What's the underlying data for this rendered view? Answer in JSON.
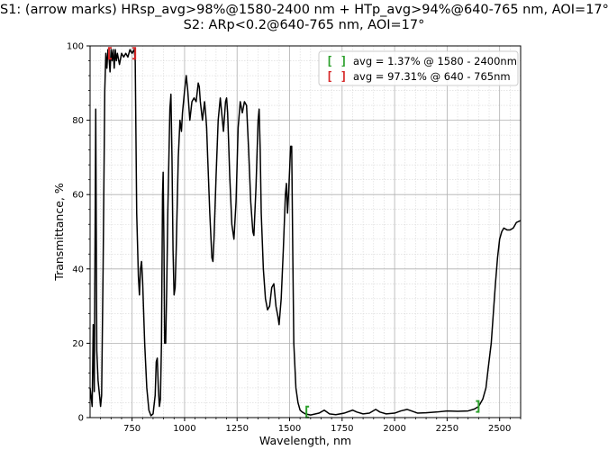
{
  "chart_data": {
    "type": "line",
    "title_line1": "S1: (arrow marks) HRsp_avg>98%@1580-2400 nm + HTp_avg>94%@640-765 nm, AOI=17°",
    "title_line2": "S2: ARp<0.2@640-765 nm, AOI=17°",
    "xlabel": "Wavelength, nm",
    "ylabel": "Transmittance, %",
    "xlim": [
      550,
      2600
    ],
    "ylim": [
      0,
      100
    ],
    "xticks": [
      750,
      1000,
      1250,
      1500,
      1750,
      2000,
      2250,
      2500
    ],
    "yticks": [
      0,
      20,
      40,
      60,
      80,
      100
    ],
    "grid": true,
    "legend_position": "top-right",
    "legend": [
      {
        "marker": "[ ]",
        "color": "#2ca02c",
        "label": "avg = 1.37% @ 1580 - 2400nm"
      },
      {
        "marker": "[ ]",
        "color": "#d62728",
        "label": "avg = 97.31% @ 640 - 765nm"
      }
    ],
    "bracket_marks": [
      {
        "x": 640,
        "y": 98,
        "color": "#d62728",
        "side": "left"
      },
      {
        "x": 765,
        "y": 98,
        "color": "#d62728",
        "side": "right"
      },
      {
        "x": 1580,
        "y": 1.5,
        "color": "#2ca02c",
        "side": "left"
      },
      {
        "x": 2400,
        "y": 3,
        "color": "#2ca02c",
        "side": "right"
      }
    ],
    "series": [
      {
        "color": "#000000",
        "points": [
          [
            550,
            8
          ],
          [
            560,
            3
          ],
          [
            565,
            25
          ],
          [
            570,
            7
          ],
          [
            577,
            83
          ],
          [
            582,
            18
          ],
          [
            588,
            10
          ],
          [
            595,
            6
          ],
          [
            600,
            3
          ],
          [
            605,
            6
          ],
          [
            612,
            40
          ],
          [
            620,
            88
          ],
          [
            625,
            98
          ],
          [
            630,
            94
          ],
          [
            635,
            99
          ],
          [
            640,
            97
          ],
          [
            645,
            93
          ],
          [
            650,
            99
          ],
          [
            655,
            96
          ],
          [
            660,
            99
          ],
          [
            665,
            94
          ],
          [
            670,
            99
          ],
          [
            675,
            96
          ],
          [
            680,
            98
          ],
          [
            690,
            95
          ],
          [
            700,
            98
          ],
          [
            710,
            97
          ],
          [
            720,
            98
          ],
          [
            730,
            97
          ],
          [
            740,
            99
          ],
          [
            750,
            98
          ],
          [
            760,
            99
          ],
          [
            765,
            96
          ],
          [
            772,
            55
          ],
          [
            780,
            38
          ],
          [
            785,
            33
          ],
          [
            790,
            40
          ],
          [
            795,
            42
          ],
          [
            800,
            37
          ],
          [
            810,
            20
          ],
          [
            820,
            8
          ],
          [
            830,
            2
          ],
          [
            840,
            0.5
          ],
          [
            850,
            1
          ],
          [
            860,
            6
          ],
          [
            865,
            15
          ],
          [
            870,
            16
          ],
          [
            875,
            8
          ],
          [
            880,
            3
          ],
          [
            885,
            5
          ],
          [
            890,
            20
          ],
          [
            895,
            60
          ],
          [
            898,
            66
          ],
          [
            902,
            45
          ],
          [
            905,
            20
          ],
          [
            910,
            20
          ],
          [
            915,
            35
          ],
          [
            920,
            55
          ],
          [
            930,
            83
          ],
          [
            935,
            87
          ],
          [
            940,
            70
          ],
          [
            945,
            45
          ],
          [
            950,
            33
          ],
          [
            955,
            35
          ],
          [
            960,
            45
          ],
          [
            970,
            70
          ],
          [
            978,
            80
          ],
          [
            985,
            77
          ],
          [
            990,
            82
          ],
          [
            1000,
            88
          ],
          [
            1008,
            92
          ],
          [
            1015,
            88
          ],
          [
            1025,
            80
          ],
          [
            1035,
            85
          ],
          [
            1045,
            86
          ],
          [
            1055,
            85
          ],
          [
            1065,
            90
          ],
          [
            1070,
            89
          ],
          [
            1075,
            85
          ],
          [
            1085,
            80
          ],
          [
            1095,
            85
          ],
          [
            1100,
            82
          ],
          [
            1105,
            78
          ],
          [
            1110,
            70
          ],
          [
            1120,
            55
          ],
          [
            1130,
            43
          ],
          [
            1135,
            42
          ],
          [
            1140,
            48
          ],
          [
            1150,
            65
          ],
          [
            1160,
            80
          ],
          [
            1170,
            86
          ],
          [
            1180,
            80
          ],
          [
            1185,
            77
          ],
          [
            1195,
            85
          ],
          [
            1200,
            86
          ],
          [
            1205,
            82
          ],
          [
            1215,
            65
          ],
          [
            1225,
            52
          ],
          [
            1235,
            48
          ],
          [
            1245,
            58
          ],
          [
            1255,
            78
          ],
          [
            1265,
            85
          ],
          [
            1275,
            82
          ],
          [
            1285,
            85
          ],
          [
            1295,
            84
          ],
          [
            1305,
            72
          ],
          [
            1315,
            58
          ],
          [
            1325,
            50
          ],
          [
            1330,
            49
          ],
          [
            1340,
            62
          ],
          [
            1350,
            80
          ],
          [
            1355,
            83
          ],
          [
            1360,
            72
          ],
          [
            1365,
            55
          ],
          [
            1375,
            40
          ],
          [
            1385,
            32
          ],
          [
            1395,
            29
          ],
          [
            1405,
            30
          ],
          [
            1415,
            35
          ],
          [
            1425,
            36
          ],
          [
            1435,
            30
          ],
          [
            1445,
            27
          ],
          [
            1450,
            25
          ],
          [
            1460,
            32
          ],
          [
            1470,
            45
          ],
          [
            1480,
            60
          ],
          [
            1485,
            63
          ],
          [
            1490,
            55
          ],
          [
            1495,
            60
          ],
          [
            1505,
            73
          ],
          [
            1510,
            73
          ],
          [
            1515,
            45
          ],
          [
            1520,
            20
          ],
          [
            1530,
            8
          ],
          [
            1540,
            4
          ],
          [
            1550,
            2
          ],
          [
            1560,
            1.5
          ],
          [
            1575,
            1
          ],
          [
            1600,
            0.7
          ],
          [
            1640,
            1.2
          ],
          [
            1665,
            2
          ],
          [
            1690,
            1
          ],
          [
            1720,
            0.8
          ],
          [
            1760,
            1.2
          ],
          [
            1800,
            2
          ],
          [
            1820,
            1.5
          ],
          [
            1850,
            1
          ],
          [
            1880,
            1.2
          ],
          [
            1910,
            2.2
          ],
          [
            1930,
            1.5
          ],
          [
            1960,
            1
          ],
          [
            2000,
            1.2
          ],
          [
            2030,
            1.8
          ],
          [
            2060,
            2.2
          ],
          [
            2080,
            1.8
          ],
          [
            2110,
            1.2
          ],
          [
            2150,
            1.3
          ],
          [
            2200,
            1.5
          ],
          [
            2250,
            1.8
          ],
          [
            2300,
            1.7
          ],
          [
            2350,
            1.8
          ],
          [
            2380,
            2.3
          ],
          [
            2400,
            3
          ],
          [
            2420,
            5
          ],
          [
            2435,
            8
          ],
          [
            2445,
            13
          ],
          [
            2460,
            20
          ],
          [
            2470,
            28
          ],
          [
            2480,
            36
          ],
          [
            2490,
            43
          ],
          [
            2500,
            48
          ],
          [
            2510,
            50
          ],
          [
            2520,
            51
          ],
          [
            2535,
            50.5
          ],
          [
            2550,
            50.5
          ],
          [
            2565,
            51
          ],
          [
            2580,
            52.5
          ],
          [
            2600,
            53
          ]
        ]
      }
    ]
  }
}
